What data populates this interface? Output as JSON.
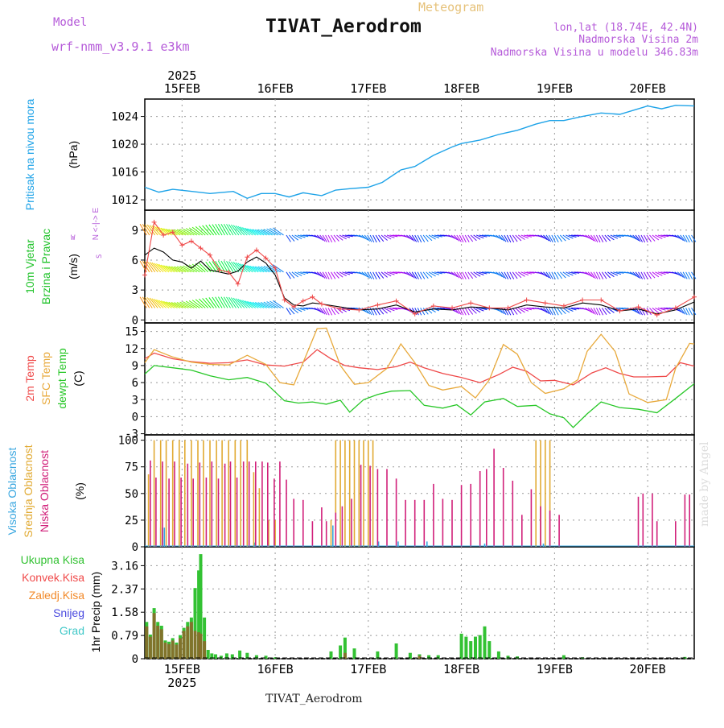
{
  "header": {
    "title": "TIVAT_Aerodrom",
    "meteogram": "Meteogram",
    "model_label": "Model",
    "model_value": "wrf-nmm_v3.9.1 e3km",
    "location": "lon,lat (18.74E, 42.4N)",
    "altitude": "Nadmorska Visina 2m",
    "model_altitude": "Nadmorska Visina u modelu 346.83m",
    "footer": "TIVAT_Aerodrom",
    "watermark": "made by Angel"
  },
  "colors": {
    "pressure": "#1ea3e8",
    "wind_label": "#22c32c",
    "t2m": "#ef4848",
    "sfc": "#e8a93b",
    "dewpt": "#27c727",
    "high_cloud": "#3aa7e0",
    "mid_cloud": "#e1aa33",
    "low_cloud": "#d1207a",
    "precip_total": "#33c233",
    "precip_conv": "#f04a4a",
    "precip_frozen": "#f28a2a",
    "snow": "#4a4adf",
    "hail": "#40c8c8",
    "compass": "#b55ad9"
  },
  "chart_data": [
    {
      "type": "line",
      "title": "Pritisak na nivou mora",
      "ylabel": "(hPa)",
      "ylim": [
        1010.5,
        1026.5
      ],
      "yticks": [
        1012,
        1016,
        1020,
        1024
      ],
      "x_start_day": 14.6,
      "x_end_day": 20.5,
      "x_tick_days": [
        15,
        16,
        17,
        18,
        19,
        20
      ],
      "x_tick_labels": [
        "15FEB",
        "16FEB",
        "17FEB",
        "18FEB",
        "19FEB",
        "20FEB"
      ],
      "year_label": "2025",
      "series": [
        {
          "name": "MSLP",
          "x": [
            14.6,
            14.75,
            14.9,
            15.05,
            15.3,
            15.55,
            15.7,
            15.85,
            16.0,
            16.15,
            16.3,
            16.5,
            16.65,
            16.8,
            17.0,
            17.15,
            17.35,
            17.5,
            17.7,
            17.9,
            18.0,
            18.2,
            18.4,
            18.6,
            18.8,
            18.95,
            19.1,
            19.3,
            19.5,
            19.7,
            19.85,
            20.0,
            20.15,
            20.3,
            20.5
          ],
          "values": [
            1013.8,
            1013.1,
            1013.5,
            1013.3,
            1012.9,
            1013.2,
            1012.2,
            1012.9,
            1012.9,
            1012.4,
            1013.0,
            1012.6,
            1013.4,
            1013.6,
            1013.8,
            1014.5,
            1016.3,
            1016.8,
            1018.4,
            1019.6,
            1020.1,
            1020.6,
            1021.4,
            1022.0,
            1022.9,
            1023.4,
            1023.4,
            1024.0,
            1024.5,
            1024.3,
            1024.9,
            1025.5,
            1025.1,
            1025.6,
            1025.5
          ]
        }
      ]
    },
    {
      "type": "line",
      "title": "10m Vjetar",
      "title2": "Brzina i Pravac",
      "ylabel": "(m/s)",
      "compass": "N <-|-> E",
      "compass_w": "W",
      "compass_s": "S",
      "ylim": [
        -0.3,
        11
      ],
      "yticks": [
        0,
        3,
        6,
        9
      ],
      "series": [
        {
          "name": "speed",
          "x": [
            14.6,
            14.7,
            14.8,
            14.9,
            15.0,
            15.1,
            15.2,
            15.3,
            15.4,
            15.5,
            15.6,
            15.7,
            15.8,
            15.9,
            16.0,
            16.1,
            16.2,
            16.3,
            16.4,
            16.5,
            16.7,
            16.9,
            17.1,
            17.3,
            17.5,
            17.7,
            17.9,
            18.1,
            18.3,
            18.5,
            18.7,
            18.9,
            19.1,
            19.3,
            19.5,
            19.7,
            19.9,
            20.1,
            20.3,
            20.5
          ],
          "values": [
            6.5,
            7.2,
            6.8,
            6.0,
            5.8,
            5.2,
            5.9,
            5.0,
            4.8,
            4.6,
            4.9,
            5.8,
            6.3,
            5.7,
            4.5,
            2.2,
            1.5,
            1.4,
            1.7,
            1.6,
            1.3,
            1.0,
            1.1,
            1.5,
            0.8,
            1.1,
            1.0,
            1.3,
            1.2,
            1.0,
            1.5,
            1.3,
            1.2,
            1.7,
            1.5,
            0.9,
            1.1,
            0.6,
            1.0,
            1.8
          ]
        },
        {
          "name": "gust",
          "x": [
            14.6,
            14.7,
            14.8,
            14.9,
            15.0,
            15.1,
            15.2,
            15.3,
            15.4,
            15.5,
            15.6,
            15.7,
            15.8,
            15.9,
            16.0,
            16.1,
            16.2,
            16.3,
            16.4,
            16.5,
            16.7,
            16.9,
            17.1,
            17.3,
            17.5,
            17.7,
            17.9,
            18.1,
            18.3,
            18.5,
            18.7,
            18.9,
            19.1,
            19.3,
            19.5,
            19.7,
            19.9,
            20.1,
            20.3,
            20.5
          ],
          "values": [
            4.5,
            9.8,
            8.5,
            8.8,
            7.5,
            7.9,
            7.2,
            6.5,
            5.0,
            4.8,
            3.6,
            6.3,
            7.0,
            6.2,
            5.2,
            2.0,
            1.3,
            1.9,
            2.3,
            1.6,
            1.1,
            1.0,
            1.5,
            1.9,
            0.6,
            1.4,
            1.2,
            1.7,
            1.2,
            1.2,
            2.0,
            1.7,
            1.4,
            2.0,
            2.0,
            0.9,
            1.3,
            0.5,
            1.2,
            2.3
          ]
        }
      ]
    },
    {
      "type": "line",
      "title": "2m Temp",
      "title2": "SFC Temp",
      "title3": "dewpt Temp",
      "ylabel": "(C)",
      "ylim": [
        -3.2,
        16.5
      ],
      "yticks": [
        -3,
        0,
        3,
        6,
        9,
        12,
        15
      ],
      "series": [
        {
          "name": "2m Temp",
          "x": [
            14.6,
            14.7,
            14.9,
            15.1,
            15.3,
            15.5,
            15.7,
            15.9,
            16.1,
            16.3,
            16.45,
            16.6,
            16.75,
            16.9,
            17.1,
            17.3,
            17.45,
            17.6,
            17.8,
            18.0,
            18.2,
            18.4,
            18.55,
            18.7,
            18.85,
            19.0,
            19.2,
            19.4,
            19.55,
            19.7,
            19.85,
            20.0,
            20.2,
            20.35,
            20.5
          ],
          "values": [
            10.2,
            11.2,
            10.2,
            9.7,
            9.4,
            9.5,
            10.0,
            9.1,
            8.9,
            9.6,
            11.8,
            10.2,
            9.0,
            8.6,
            8.3,
            8.8,
            9.6,
            8.6,
            7.6,
            6.9,
            6.0,
            7.4,
            8.7,
            8.0,
            6.3,
            6.4,
            5.6,
            7.7,
            8.6,
            7.6,
            7.0,
            7.0,
            7.1,
            9.5,
            8.9
          ]
        },
        {
          "name": "SFC Temp",
          "x": [
            14.6,
            14.7,
            14.9,
            15.1,
            15.3,
            15.5,
            15.7,
            15.9,
            16.05,
            16.2,
            16.35,
            16.45,
            16.55,
            16.7,
            16.85,
            17.0,
            17.2,
            17.35,
            17.5,
            17.65,
            17.8,
            18.0,
            18.15,
            18.3,
            18.45,
            18.6,
            18.75,
            18.9,
            19.1,
            19.25,
            19.35,
            19.5,
            19.65,
            19.8,
            20.0,
            20.2,
            20.3,
            20.45,
            20.5
          ],
          "values": [
            9.5,
            11.8,
            10.5,
            9.6,
            9.2,
            9.1,
            10.8,
            9.2,
            6.0,
            5.6,
            11.5,
            15.5,
            15.6,
            9.0,
            5.7,
            6.0,
            8.5,
            12.8,
            9.5,
            5.5,
            4.7,
            5.3,
            3.3,
            6.5,
            12.7,
            11.0,
            6.0,
            4.1,
            4.9,
            6.5,
            11.5,
            14.5,
            11.5,
            4.0,
            2.5,
            3.0,
            8.5,
            12.9,
            12.8
          ]
        },
        {
          "name": "dewpt Temp",
          "x": [
            14.6,
            14.7,
            14.9,
            15.1,
            15.3,
            15.5,
            15.7,
            15.9,
            16.1,
            16.25,
            16.4,
            16.55,
            16.7,
            16.8,
            16.95,
            17.1,
            17.25,
            17.45,
            17.6,
            17.8,
            17.95,
            18.1,
            18.25,
            18.45,
            18.6,
            18.8,
            18.95,
            19.1,
            19.2,
            19.35,
            19.5,
            19.7,
            19.9,
            20.1,
            20.3,
            20.5
          ],
          "values": [
            7.5,
            9.0,
            8.6,
            8.2,
            7.2,
            6.5,
            6.9,
            5.9,
            2.8,
            2.4,
            2.6,
            2.2,
            2.9,
            0.8,
            3.0,
            3.9,
            4.5,
            4.6,
            2.0,
            1.5,
            2.1,
            0.3,
            2.6,
            3.2,
            1.8,
            2.0,
            0.5,
            -0.2,
            -1.9,
            0.5,
            2.6,
            1.6,
            1.3,
            0.7,
            3.2,
            5.8
          ]
        }
      ]
    },
    {
      "type": "bar",
      "title": "Visoka Oblacnost",
      "title2": "Srednja Oblacnost",
      "title3": "Niska Oblacnost",
      "ylabel": "(%)",
      "ylim": [
        0,
        105
      ],
      "yticks": [
        0,
        25,
        50,
        75,
        100
      ],
      "series": [
        {
          "name": "Visoka Oblacnost",
          "x": [
            14.77,
            14.79,
            14.81,
            15.72,
            15.78,
            16.62,
            17.11,
            17.32,
            17.63,
            18.25,
            18.88
          ],
          "values": [
            18,
            18,
            18,
            6,
            4,
            20,
            5,
            5,
            5,
            3,
            3
          ]
        },
        {
          "name": "Srednja Oblacnost",
          "x": [
            14.64,
            14.7,
            14.77,
            14.83,
            14.9,
            14.97,
            15.03,
            15.1,
            15.17,
            15.23,
            15.3,
            15.37,
            15.43,
            15.5,
            15.57,
            15.63,
            15.7,
            15.77,
            15.83,
            15.93,
            16.0,
            16.6,
            16.65,
            16.7,
            16.75,
            16.8,
            16.85,
            16.9,
            16.95,
            17.0,
            17.05,
            18.8,
            18.85,
            18.9,
            18.95
          ],
          "values": [
            68,
            100,
            100,
            100,
            100,
            100,
            100,
            100,
            100,
            100,
            100,
            100,
            100,
            100,
            100,
            100,
            100,
            70,
            55,
            25,
            25,
            25,
            100,
            100,
            100,
            100,
            100,
            100,
            100,
            100,
            100,
            100,
            100,
            100,
            100
          ]
        },
        {
          "name": "Niska Oblacnost",
          "x": [
            14.66,
            14.72,
            14.79,
            14.86,
            14.92,
            14.99,
            15.06,
            15.12,
            15.19,
            15.26,
            15.32,
            15.39,
            15.46,
            15.52,
            15.59,
            15.66,
            15.72,
            15.79,
            15.86,
            15.92,
            15.99,
            16.05,
            16.12,
            16.2,
            16.3,
            16.4,
            16.5,
            16.55,
            16.65,
            16.72,
            16.82,
            16.92,
            17.02,
            17.1,
            17.2,
            17.3,
            17.4,
            17.5,
            17.6,
            17.7,
            17.8,
            17.9,
            18.0,
            18.1,
            18.2,
            18.27,
            18.35,
            18.45,
            18.55,
            18.65,
            18.75,
            18.85,
            18.95,
            19.05,
            19.9,
            19.95,
            20.05,
            20.1,
            20.3,
            20.4,
            20.45
          ],
          "values": [
            81,
            65,
            80,
            64,
            80,
            65,
            78,
            64,
            79,
            65,
            80,
            64,
            78,
            80,
            65,
            80,
            80,
            80,
            80,
            79,
            64,
            80,
            63,
            45,
            44,
            24,
            37,
            24,
            32,
            38,
            45,
            77,
            76,
            73,
            73,
            64,
            44,
            44,
            44,
            59,
            45,
            44,
            58,
            59,
            71,
            73,
            92,
            74,
            62,
            30,
            54,
            38,
            34,
            30,
            47,
            50,
            50,
            24,
            24,
            49,
            49
          ]
        }
      ]
    },
    {
      "type": "bar",
      "title": "Ukupna Kisa",
      "title2": "Konvek.Kisa",
      "title3": "Zaledj.Kisa",
      "title4": "Snijeg",
      "title5": "Grad",
      "ylabel": "1hr Precip (mm)",
      "ylim": [
        0,
        3.8
      ],
      "yticks": [
        0,
        0.79,
        1.58,
        2.37,
        3.16
      ],
      "ytick_labels": [
        "0",
        "0.79",
        "1.58",
        "2.37",
        "3.16"
      ],
      "series": [
        {
          "name": "Ukupna Kisa",
          "x": [
            14.62,
            14.66,
            14.7,
            14.74,
            14.78,
            14.82,
            14.86,
            14.9,
            14.94,
            14.98,
            15.02,
            15.06,
            15.1,
            15.14,
            15.18,
            15.2,
            15.24,
            15.28,
            15.32,
            15.36,
            15.42,
            15.48,
            15.54,
            15.62,
            15.7,
            15.8,
            15.9,
            16.0,
            16.6,
            16.7,
            16.75,
            16.85,
            17.1,
            17.3,
            17.45,
            17.55,
            17.65,
            17.75,
            18.0,
            18.05,
            18.1,
            18.15,
            18.2,
            18.25,
            18.3,
            18.4,
            18.5,
            18.6,
            19.1,
            19.3,
            20.4
          ],
          "values": [
            1.25,
            0.82,
            1.72,
            1.25,
            1.12,
            0.62,
            0.58,
            0.7,
            0.55,
            0.8,
            1.05,
            1.25,
            1.4,
            2.4,
            3.0,
            3.55,
            1.4,
            0.3,
            0.18,
            0.15,
            0.1,
            0.18,
            0.15,
            0.28,
            0.2,
            0.12,
            0.1,
            0.05,
            0.25,
            0.45,
            0.72,
            0.35,
            0.25,
            0.52,
            0.2,
            0.15,
            0.12,
            0.12,
            0.85,
            0.75,
            0.6,
            0.75,
            0.8,
            1.1,
            0.6,
            0.25,
            0.1,
            0.08,
            0.12,
            0.05,
            0.06
          ]
        },
        {
          "name": "Konvek.Kisa",
          "x": [
            14.62,
            14.66,
            14.7,
            14.74,
            14.78,
            14.82,
            14.86,
            14.9,
            14.94,
            14.98,
            15.02,
            15.06,
            15.1,
            15.14,
            15.18,
            15.2,
            15.24,
            16.75,
            17.55
          ],
          "values": [
            1.1,
            0.75,
            1.55,
            1.12,
            1.0,
            0.55,
            0.5,
            0.62,
            0.48,
            0.7,
            0.95,
            1.1,
            1.25,
            0.95,
            0.9,
            0.85,
            0.6,
            0.2,
            0.1
          ]
        }
      ]
    }
  ]
}
